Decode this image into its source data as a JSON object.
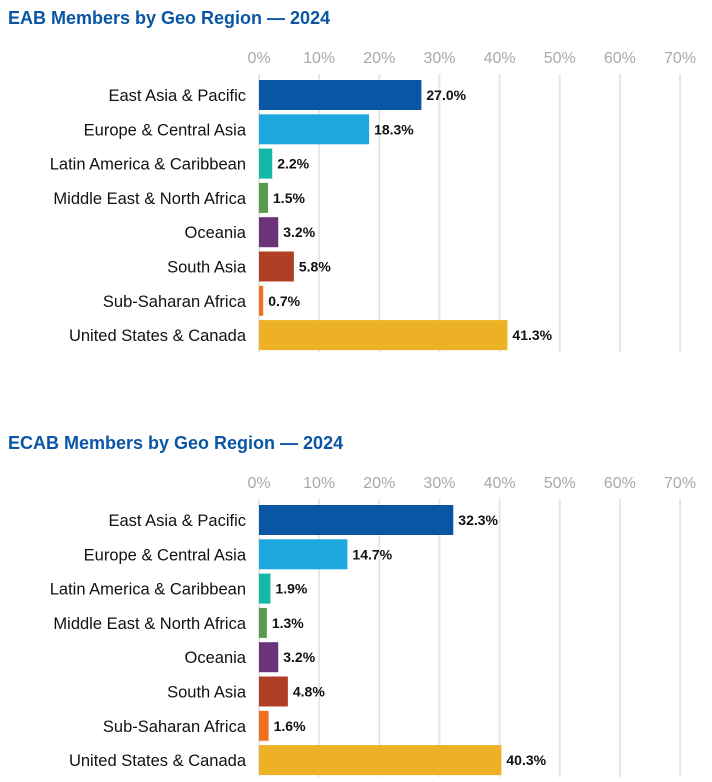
{
  "chart_data": [
    {
      "type": "bar",
      "orientation": "horizontal",
      "title": "EAB Members by Geo Region — 2024",
      "xlabel": "",
      "ylabel": "",
      "xlim": [
        0,
        70
      ],
      "ticks": [
        "0%",
        "10%",
        "20%",
        "30%",
        "40%",
        "50%",
        "60%",
        "70%"
      ],
      "grid": true,
      "categories": [
        "East Asia & Pacific",
        "Europe & Central Asia",
        "Latin America & Caribbean",
        "Middle East & North Africa",
        "Oceania",
        "South Asia",
        "Sub-Saharan Africa",
        "United States & Canada"
      ],
      "values": [
        27.0,
        18.3,
        2.2,
        1.5,
        3.2,
        5.8,
        0.7,
        41.3
      ],
      "labels": [
        "27.0%",
        "18.3%",
        "2.2%",
        "1.5%",
        "3.2%",
        "5.8%",
        "0.7%",
        "41.3%"
      ],
      "colors": [
        "#0a56a5",
        "#1ea8e0",
        "#14b8a8",
        "#5a9a4e",
        "#6a3578",
        "#b13f26",
        "#f07020",
        "#ecb124"
      ]
    },
    {
      "type": "bar",
      "orientation": "horizontal",
      "title": "ECAB Members by Geo Region — 2024",
      "xlabel": "",
      "ylabel": "",
      "xlim": [
        0,
        70
      ],
      "ticks": [
        "0%",
        "10%",
        "20%",
        "30%",
        "40%",
        "50%",
        "60%",
        "70%"
      ],
      "grid": true,
      "categories": [
        "East Asia & Pacific",
        "Europe & Central Asia",
        "Latin America & Caribbean",
        "Middle East & North Africa",
        "Oceania",
        "South Asia",
        "Sub-Saharan Africa",
        "United States & Canada"
      ],
      "values": [
        32.3,
        14.7,
        1.9,
        1.3,
        3.2,
        4.8,
        1.6,
        40.3
      ],
      "labels": [
        "32.3%",
        "14.7%",
        "1.9%",
        "1.3%",
        "3.2%",
        "4.8%",
        "1.6%",
        "40.3%"
      ],
      "colors": [
        "#0a56a5",
        "#1ea8e0",
        "#14b8a8",
        "#5a9a4e",
        "#6a3578",
        "#b13f26",
        "#f07020",
        "#ecb124"
      ]
    }
  ]
}
